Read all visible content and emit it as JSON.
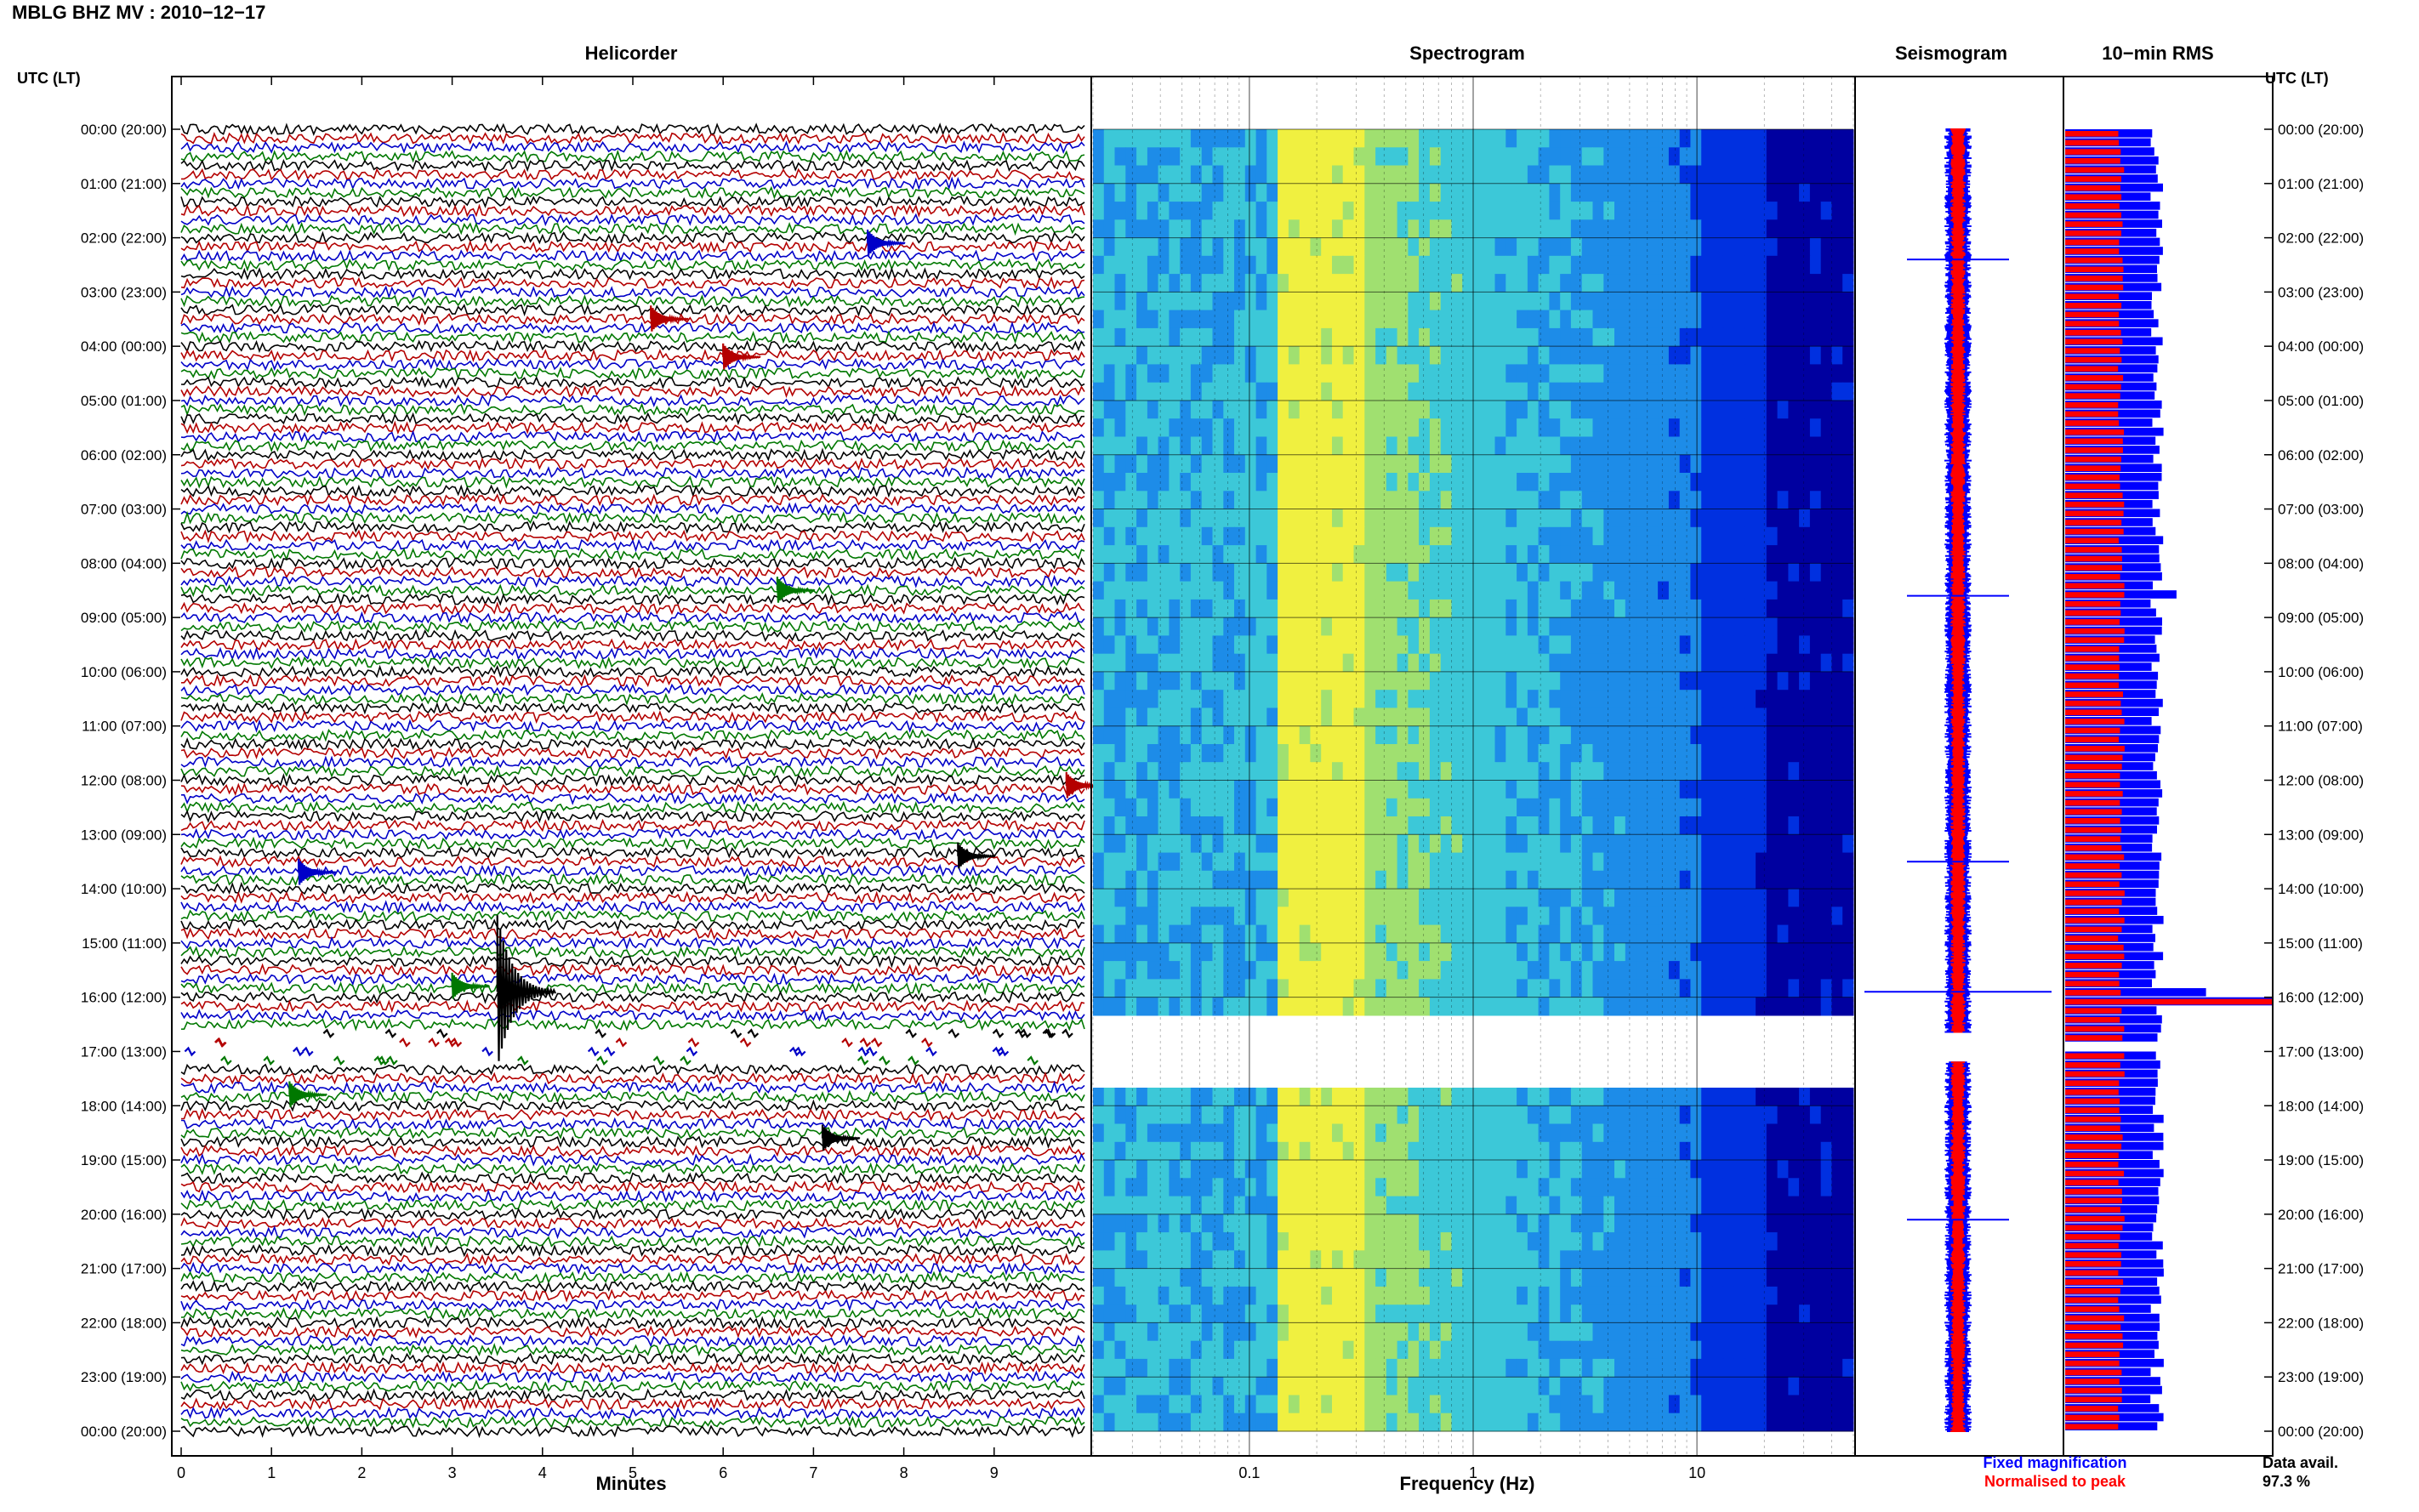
{
  "title": "MBLG BHZ MV : 2010−12−17",
  "panels": {
    "helicorder": "Helicorder",
    "spectrogram": "Spectrogram",
    "seismogram": "Seismogram",
    "rms": "10−min RMS"
  },
  "utc_label_left": "UTC (LT)",
  "utc_label_right": "UTC (LT)",
  "legend": {
    "fixed": "Fixed magnification",
    "normalised": "Normalised to peak",
    "fixed_color": "#0000ff",
    "normalised_color": "#ff0000"
  },
  "data_avail": {
    "label": "Data avail.",
    "value": "97.3 %"
  },
  "chart_data": [
    {
      "type": "line",
      "name": "Helicorder",
      "xlabel": "Minutes",
      "x_ticks": [
        "0",
        "1",
        "2",
        "3",
        "4",
        "5",
        "6",
        "7",
        "8",
        "9"
      ],
      "xlim": [
        0,
        10
      ],
      "y_ticks": [
        "00:00 (20:00)",
        "01:00 (21:00)",
        "02:00 (22:00)",
        "03:00 (23:00)",
        "04:00 (00:00)",
        "05:00 (01:00)",
        "06:00 (02:00)",
        "07:00 (03:00)",
        "08:00 (04:00)",
        "09:00 (05:00)",
        "10:00 (06:00)",
        "11:00 (07:00)",
        "12:00 (08:00)",
        "13:00 (09:00)",
        "14:00 (10:00)",
        "15:00 (11:00)",
        "16:00 (12:00)",
        "17:00 (13:00)",
        "18:00 (14:00)",
        "19:00 (15:00)",
        "20:00 (16:00)",
        "21:00 (17:00)",
        "22:00 (18:00)",
        "23:00 (19:00)",
        "00:00 (20:00)"
      ],
      "trace_colors": [
        "#000000",
        "#b40000",
        "#0000c8",
        "#007800"
      ],
      "traces_per_hour": 6,
      "gap_hours": [
        16.6,
        17.2
      ],
      "events": [
        {
          "hour": 2.1,
          "minute": 7.6,
          "color": "#0000c8"
        },
        {
          "hour": 3.5,
          "minute": 5.2,
          "color": "#b40000"
        },
        {
          "hour": 4.2,
          "minute": 6.0,
          "color": "#b40000"
        },
        {
          "hour": 8.5,
          "minute": 6.6,
          "color": "#007800"
        },
        {
          "hour": 12.1,
          "minute": 9.8,
          "color": "#b40000"
        },
        {
          "hour": 13.4,
          "minute": 8.6,
          "color": "#000000"
        },
        {
          "hour": 13.7,
          "minute": 1.3,
          "color": "#0000c8"
        },
        {
          "hour": 15.8,
          "minute": 3.0,
          "color": "#007800"
        },
        {
          "hour": 15.9,
          "minute": 3.5,
          "color": "#000000"
        },
        {
          "hour": 17.8,
          "minute": 1.2,
          "color": "#007800"
        },
        {
          "hour": 18.6,
          "minute": 7.1,
          "color": "#000000"
        }
      ]
    },
    {
      "type": "heatmap",
      "name": "Spectrogram",
      "xlabel": "Frequency (Hz)",
      "x_scale": "log",
      "xlim": [
        0.02,
        50
      ],
      "x_ticks": [
        "0.1",
        "1",
        "10"
      ],
      "colormap": [
        "#0000a0",
        "#0030e0",
        "#1d8ce8",
        "#3cc8d8",
        "#a0e070",
        "#f0f040"
      ],
      "gap_hours": [
        16.6,
        17.4
      ]
    },
    {
      "type": "line",
      "name": "Seismogram",
      "series": [
        {
          "name": "Fixed magnification",
          "color": "#0000ff"
        },
        {
          "name": "Normalised to peak",
          "color": "#ff0000"
        }
      ],
      "spikes_hours": [
        2.4,
        8.6,
        13.5,
        15.9,
        20.1
      ]
    },
    {
      "type": "bar",
      "name": "10−min RMS",
      "orientation": "horizontal",
      "series": [
        {
          "name": "Fixed magnification",
          "color": "#0000ff"
        },
        {
          "name": "Normalised to peak",
          "color": "#ff0000"
        }
      ],
      "bins_per_hour": 6,
      "gap_hours": [
        16.67,
        17.0
      ],
      "peak_hour": 16.0
    }
  ]
}
